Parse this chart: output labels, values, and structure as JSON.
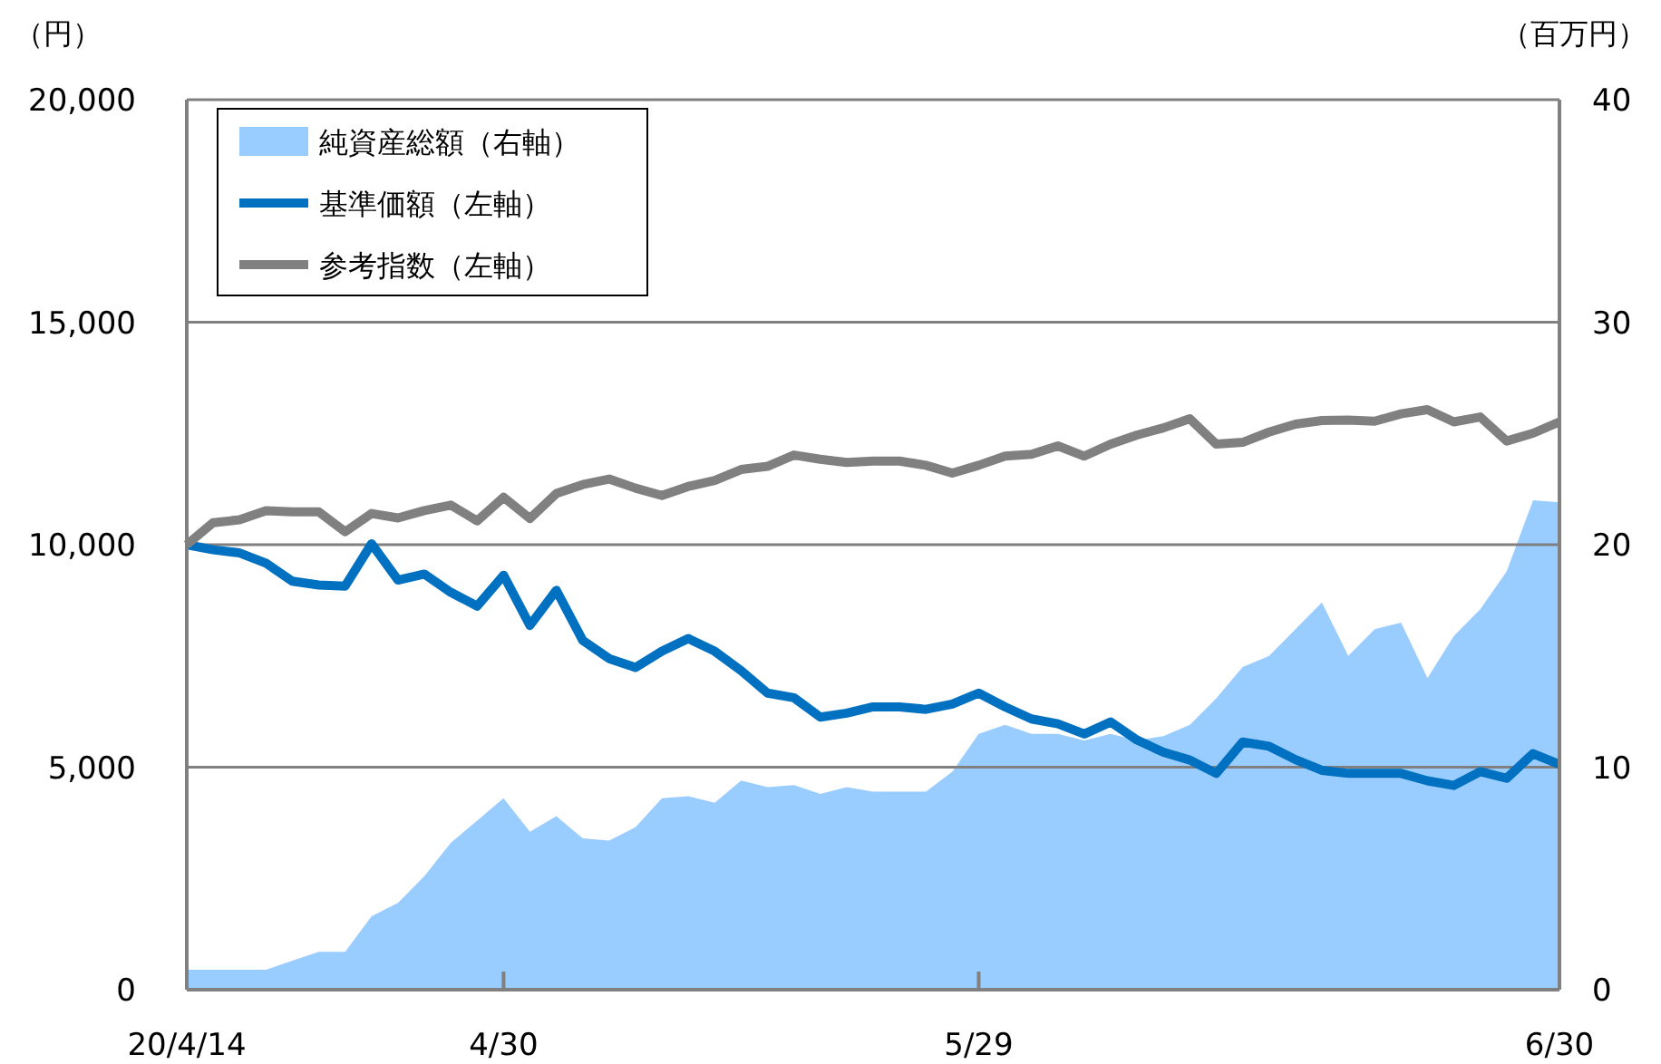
{
  "chart_data": {
    "type": "line",
    "ylabel": "（円）",
    "y2label": "（百万円）",
    "categories": [
      "20/4/14",
      null,
      null,
      null,
      null,
      null,
      null,
      null,
      null,
      null,
      null,
      null,
      "4/30",
      null,
      null,
      null,
      null,
      null,
      null,
      null,
      null,
      null,
      null,
      null,
      null,
      null,
      null,
      null,
      null,
      null,
      "5/29",
      null,
      null,
      null,
      null,
      null,
      null,
      null,
      null,
      null,
      null,
      null,
      null,
      null,
      null,
      null,
      null,
      null,
      null,
      null,
      null,
      null,
      "6/30"
    ],
    "series": [
      {
        "name": "純資産総額（右軸）",
        "type": "area",
        "axis": "y2",
        "color": "#99ccff",
        "values": [
          0.9,
          0.9,
          0.9,
          0.9,
          1.3,
          1.7,
          1.7,
          3.3,
          3.9,
          5.1,
          6.6,
          7.6,
          8.6,
          7.1,
          7.8,
          6.8,
          6.7,
          7.3,
          8.6,
          8.7,
          8.4,
          9.4,
          9.1,
          9.2,
          8.8,
          9.1,
          8.9,
          8.9,
          8.9,
          9.8,
          11.5,
          11.9,
          11.5,
          11.5,
          11.2,
          11.5,
          11.2,
          11.4,
          11.9,
          13.1,
          14.5,
          15.0,
          16.2,
          17.4,
          15.0,
          16.2,
          16.5,
          14.0,
          15.9,
          17.1,
          18.8,
          22.0,
          21.9
        ]
      },
      {
        "name": "基準価額（左軸）",
        "color": "#0070c0",
        "values": [
          10000,
          9885,
          9815,
          9585,
          9180,
          9095,
          9070,
          10020,
          9205,
          9340,
          8930,
          8620,
          9315,
          8185,
          8975,
          7850,
          7440,
          7240,
          7605,
          7890,
          7605,
          7170,
          6665,
          6560,
          6125,
          6215,
          6355,
          6355,
          6300,
          6420,
          6665,
          6355,
          6085,
          5975,
          5745,
          6015,
          5610,
          5335,
          5160,
          4860,
          5565,
          5470,
          5170,
          4930,
          4860,
          4860,
          4860,
          4695,
          4590,
          4900,
          4750,
          5305,
          5065
        ]
      },
      {
        "name": "参考指数（左軸）",
        "color": "#808080",
        "values": [
          10000,
          10495,
          10560,
          10765,
          10740,
          10740,
          10290,
          10700,
          10600,
          10765,
          10890,
          10535,
          11065,
          10590,
          11150,
          11350,
          11475,
          11270,
          11105,
          11310,
          11445,
          11690,
          11760,
          12015,
          11920,
          11850,
          11880,
          11880,
          11785,
          11610,
          11785,
          11990,
          12030,
          12220,
          11990,
          12260,
          12465,
          12625,
          12830,
          12260,
          12300,
          12530,
          12710,
          12790,
          12800,
          12775,
          12940,
          13035,
          12760,
          12870,
          12330,
          12505,
          12760
        ]
      }
    ],
    "ylim": [
      0,
      20000
    ],
    "yticks": [
      0,
      {
        "value": 5000,
        "label": "5,000"
      },
      {
        "value": 10000,
        "label": "10,000"
      },
      {
        "value": 15000,
        "label": "15,000"
      },
      {
        "value": 20000,
        "label": "20,000"
      }
    ],
    "y2lim": [
      0,
      40
    ],
    "y2ticks": [
      0,
      10,
      20,
      30,
      40
    ],
    "grid": "y",
    "legend": "top left",
    "line_style": "solid"
  }
}
